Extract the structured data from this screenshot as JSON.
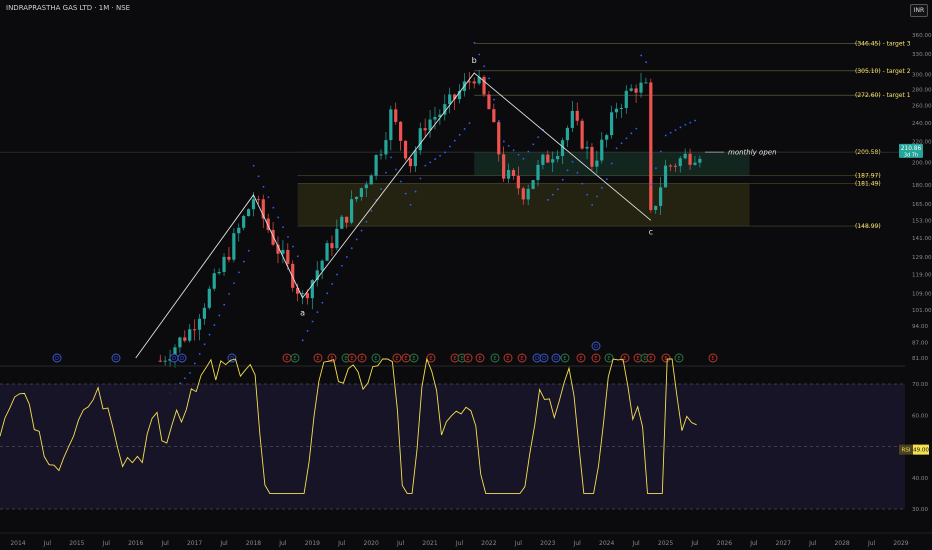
{
  "header": {
    "title": "INDRAPRASTHA GAS LTD · 1M · NSE",
    "currency": "INR"
  },
  "colors": {
    "background": "#0b0b0e",
    "up": "#26a69a",
    "down": "#ef5350",
    "psar": "#2962ff",
    "wave": "#e0e0e0",
    "target": "#fbe56b",
    "zone_green": "#1a3d2c",
    "zone_yellow": "#3b3614",
    "rsi": "#f5e050",
    "rsi_band": "#1b1730"
  },
  "chart_data": [
    {
      "type": "candlestick",
      "scale": "log",
      "x_axis_labels": [
        "2014",
        "Jul",
        "2015",
        "Jul",
        "2016",
        "Jul",
        "2017",
        "Jul",
        "2018",
        "Jul",
        "2019",
        "Jul",
        "2020",
        "Jul",
        "2021",
        "Jul",
        "2022",
        "Jul",
        "2023",
        "Jul",
        "2024",
        "Jul",
        "2025",
        "Jul",
        "2026",
        "Jul",
        "2027",
        "Jul",
        "2028",
        "Jul",
        "2029"
      ],
      "price_axis_labels": [
        "360.00",
        "330.00",
        "300.00",
        "280.00",
        "260.00",
        "240.00",
        "220.00",
        "200.00",
        "180.00",
        "165.00",
        "153.00",
        "141.00",
        "129.00",
        "119.00",
        "109.00",
        "101.00",
        "94.00",
        "87.00",
        "81.00"
      ],
      "last_price": "210.86",
      "countdown": "3d 7h",
      "levels": [
        {
          "label": "(346.45) - target 3",
          "value": 346.45
        },
        {
          "label": "(305.10) - target 2",
          "value": 305.1
        },
        {
          "label": "(272.60) - target 1",
          "value": 272.6
        },
        {
          "label": "(209.58)",
          "value": 209.58
        },
        {
          "label": "(187.97)",
          "value": 187.97
        },
        {
          "label": "(181.49)",
          "value": 181.49
        },
        {
          "label": "(148.99)",
          "value": 148.99
        }
      ],
      "annotations": [
        "a",
        "b",
        "c",
        "monthly open"
      ],
      "waves": [
        {
          "point": "start",
          "date": "2016-01",
          "price": 81
        },
        {
          "point": "",
          "date": "2018-01",
          "price": 172
        },
        {
          "point": "a",
          "date": "2018-11",
          "price": 107
        },
        {
          "point": "b",
          "date": "2021-10",
          "price": 302
        },
        {
          "point": "c",
          "date": "2024-10",
          "price": 153
        }
      ],
      "zones": [
        {
          "name": "green-zone",
          "from": "2021-10",
          "to": "2025-12",
          "low": 187.97,
          "high": 209.58
        },
        {
          "name": "yellow-zone",
          "from": "2018-10",
          "to": "2025-12",
          "low": 148.99,
          "high": 181.49
        }
      ]
    },
    {
      "type": "line",
      "name": "RSI",
      "value_label": "49.00",
      "y_axis_labels": [
        "70.00",
        "60.00",
        "50.00",
        "40.00",
        "30.00"
      ],
      "ylim": [
        30,
        70
      ]
    }
  ],
  "badges": {
    "top": [
      "D"
    ],
    "row": [
      "D",
      "D",
      "D",
      "D",
      "D",
      "E",
      "E",
      "E",
      "E",
      "E",
      "E",
      "E",
      "E",
      "E",
      "E",
      "E",
      "E",
      "E",
      "E",
      "E",
      "E",
      "E",
      "E",
      "E",
      "D",
      "D",
      "D",
      "E",
      "E",
      "E",
      "E",
      "E",
      "E",
      "E",
      "E",
      "E",
      "E",
      "E"
    ]
  }
}
